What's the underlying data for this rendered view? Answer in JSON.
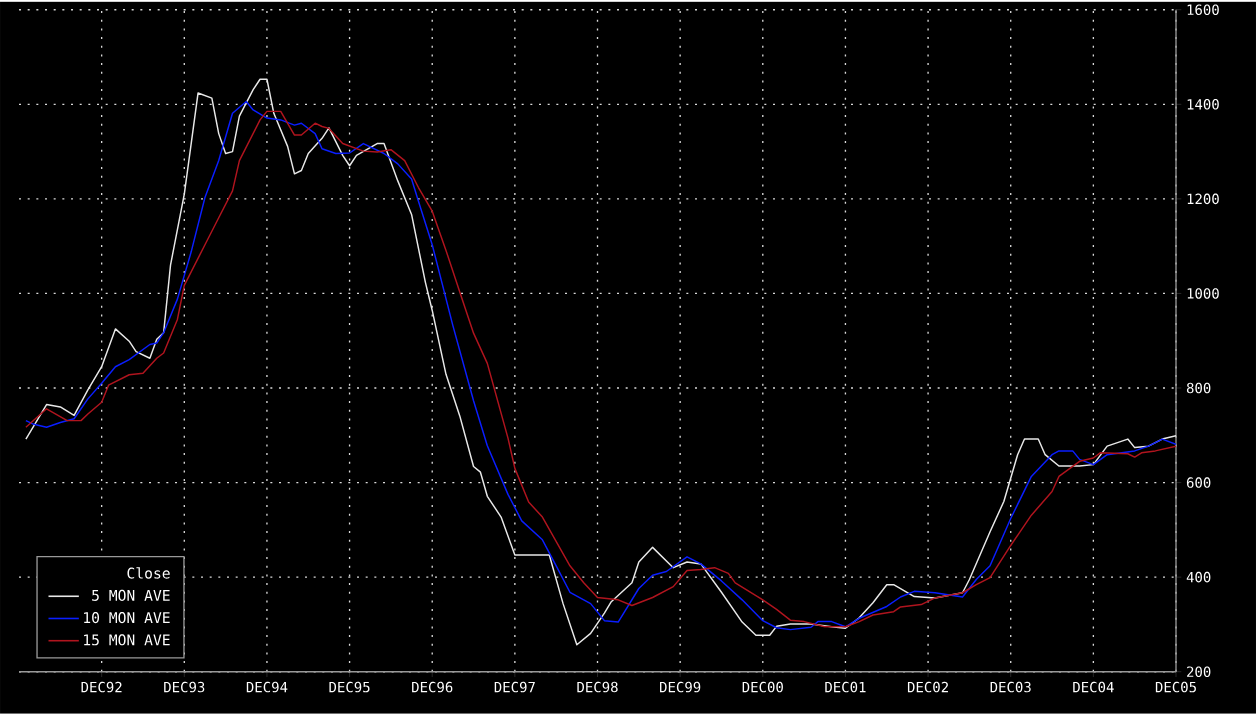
{
  "chart_data": {
    "type": "line",
    "legend_title": "Close",
    "legend": "bottom left",
    "grid": true,
    "line_style": "solid",
    "marker": "none",
    "xlim": [
      "1991-12",
      "2005-12"
    ],
    "ylim": [
      200,
      1600
    ],
    "yticks": [
      200,
      400,
      600,
      800,
      1000,
      1200,
      1400,
      1600
    ],
    "xticks": [
      {
        "value": "1992-12",
        "label": "DEC92"
      },
      {
        "value": "1993-12",
        "label": "DEC93"
      },
      {
        "value": "1994-12",
        "label": "DEC94"
      },
      {
        "value": "1995-12",
        "label": "DEC95"
      },
      {
        "value": "1996-12",
        "label": "DEC96"
      },
      {
        "value": "1997-12",
        "label": "DEC97"
      },
      {
        "value": "1998-12",
        "label": "DEC98"
      },
      {
        "value": "1999-12",
        "label": "DEC99"
      },
      {
        "value": "2000-12",
        "label": "DEC00"
      },
      {
        "value": "2001-12",
        "label": "DEC01"
      },
      {
        "value": "2002-12",
        "label": "DEC02"
      },
      {
        "value": "2003-12",
        "label": "DEC03"
      },
      {
        "value": "2004-12",
        "label": "DEC04"
      },
      {
        "value": "2005-12",
        "label": "DEC05"
      }
    ],
    "series": [
      {
        "name": "5 MON AVE",
        "color": "#e8e8e8",
        "x": [
          "1992-01",
          "1992-04",
          "1992-06",
          "1992-08",
          "1992-10",
          "1992-12",
          "1993-02",
          "1993-04",
          "1993-05",
          "1993-07",
          "1993-08",
          "1993-09",
          "1993-10",
          "1993-12",
          "1994-01",
          "1994-02",
          "1994-04",
          "1994-05",
          "1994-06",
          "1994-07",
          "1994-08",
          "1994-10",
          "1994-11",
          "1994-12",
          "1995-01",
          "1995-03",
          "1995-04",
          "1995-05",
          "1995-06",
          "1995-08",
          "1995-09",
          "1995-11",
          "1995-12",
          "1996-01",
          "1996-04",
          "1996-05",
          "1996-07",
          "1996-09",
          "1996-11",
          "1996-12",
          "1997-02",
          "1997-04",
          "1997-06",
          "1997-07",
          "1997-08",
          "1997-10",
          "1997-12",
          "1998-05",
          "1998-07",
          "1998-09",
          "1998-11",
          "1999-01",
          "1999-02",
          "1999-05",
          "1999-06",
          "1999-08",
          "1999-11",
          "2000-01",
          "2000-03",
          "2000-06",
          "2000-09",
          "2000-11",
          "2001-01",
          "2001-02",
          "2001-04",
          "2001-07",
          "2001-10",
          "2001-12",
          "2002-02",
          "2002-04",
          "2002-06",
          "2002-07",
          "2002-10",
          "2003-01",
          "2003-05",
          "2003-06",
          "2003-09",
          "2003-11",
          "2004-01",
          "2004-02",
          "2004-04",
          "2004-05",
          "2004-07",
          "2004-10",
          "2004-12",
          "2005-02",
          "2005-05",
          "2005-06",
          "2005-08",
          "2005-10",
          "2005-12"
        ],
        "values": [
          692,
          765,
          760,
          742,
          796,
          845,
          925,
          899,
          877,
          863,
          903,
          917,
          1060,
          1210,
          1317,
          1424,
          1413,
          1338,
          1296,
          1300,
          1375,
          1431,
          1453,
          1453,
          1381,
          1311,
          1253,
          1260,
          1296,
          1328,
          1350,
          1292,
          1270,
          1292,
          1317,
          1317,
          1238,
          1167,
          1024,
          964,
          829,
          741,
          634,
          622,
          571,
          527,
          447,
          447,
          344,
          257,
          281,
          324,
          348,
          388,
          432,
          463,
          420,
          432,
          428,
          368,
          305,
          277,
          277,
          296,
          301,
          301,
          295,
          292,
          314,
          346,
          384,
          384,
          359,
          356,
          367,
          395,
          496,
          560,
          659,
          692,
          692,
          659,
          635,
          635,
          638,
          677,
          692,
          674,
          677,
          692,
          699
        ]
      },
      {
        "name": "10 MON AVE",
        "color": "#0a1eff",
        "x": [
          "1992-01",
          "1992-02",
          "1992-04",
          "1992-06",
          "1992-08",
          "1992-10",
          "1992-12",
          "1993-02",
          "1993-04",
          "1993-07",
          "1993-08",
          "1993-09",
          "1993-11",
          "1994-01",
          "1994-03",
          "1994-05",
          "1994-07",
          "1994-09",
          "1994-10",
          "1994-12",
          "1995-02",
          "1995-04",
          "1995-05",
          "1995-07",
          "1995-08",
          "1995-10",
          "1995-12",
          "1996-02",
          "1996-03",
          "1996-05",
          "1996-07",
          "1996-09",
          "1996-10",
          "1996-12",
          "1997-03",
          "1997-06",
          "1997-08",
          "1997-11",
          "1998-01",
          "1998-04",
          "1998-06",
          "1998-08",
          "1998-11",
          "1999-01",
          "1999-03",
          "1999-06",
          "1999-08",
          "1999-10",
          "2000-01",
          "2000-03",
          "2000-06",
          "2000-09",
          "2000-12",
          "2001-02",
          "2001-04",
          "2001-07",
          "2001-08",
          "2001-10",
          "2001-12",
          "2002-02",
          "2002-06",
          "2002-08",
          "2002-10",
          "2003-01",
          "2003-05",
          "2003-07",
          "2003-09",
          "2003-12",
          "2004-03",
          "2004-06",
          "2004-07",
          "2004-09",
          "2004-10",
          "2004-12",
          "2005-02",
          "2005-06",
          "2005-08",
          "2005-10",
          "2005-12"
        ],
        "values": [
          731,
          724,
          717,
          727,
          735,
          777,
          810,
          845,
          860,
          892,
          895,
          917,
          988,
          1088,
          1203,
          1281,
          1381,
          1406,
          1388,
          1371,
          1367,
          1356,
          1360,
          1338,
          1306,
          1296,
          1297,
          1317,
          1310,
          1296,
          1274,
          1242,
          1195,
          1103,
          932,
          773,
          678,
          575,
          519,
          479,
          424,
          368,
          344,
          308,
          305,
          376,
          404,
          412,
          443,
          428,
          392,
          352,
          308,
          293,
          289,
          294,
          306,
          306,
          295,
          313,
          338,
          358,
          370,
          367,
          358,
          395,
          424,
          524,
          613,
          659,
          667,
          667,
          649,
          638,
          659,
          667,
          677,
          692,
          681
        ]
      },
      {
        "name": "15 MON AVE",
        "color": "#b0141e",
        "x": [
          "1992-01",
          "1992-04",
          "1992-07",
          "1992-09",
          "1992-10",
          "1992-12",
          "1993-01",
          "1993-04",
          "1993-06",
          "1993-08",
          "1993-09",
          "1993-11",
          "1993-12",
          "1994-03",
          "1994-05",
          "1994-07",
          "1994-08",
          "1994-11",
          "1994-12",
          "1995-02",
          "1995-04",
          "1995-05",
          "1995-07",
          "1995-08",
          "1995-09",
          "1995-11",
          "1996-02",
          "1996-04",
          "1996-06",
          "1996-08",
          "1996-10",
          "1996-12",
          "1997-02",
          "1997-04",
          "1997-06",
          "1997-08",
          "1997-11",
          "1997-12",
          "1998-02",
          "1998-04",
          "1998-08",
          "1998-10",
          "1998-12",
          "1999-03",
          "1999-05",
          "1999-08",
          "1999-11",
          "2000-01",
          "2000-03",
          "2000-05",
          "2000-07",
          "2000-08",
          "2000-12",
          "2001-02",
          "2001-04",
          "2001-06",
          "2001-09",
          "2001-12",
          "2002-02",
          "2002-04",
          "2002-07",
          "2002-08",
          "2002-11",
          "2003-01",
          "2003-05",
          "2003-07",
          "2003-09",
          "2003-12",
          "2004-03",
          "2004-06",
          "2004-07",
          "2004-10",
          "2004-12",
          "2005-01",
          "2005-05",
          "2005-06",
          "2005-07",
          "2005-09",
          "2005-12"
        ],
        "values": [
          717,
          756,
          731,
          731,
          745,
          770,
          806,
          828,
          831,
          863,
          874,
          945,
          1017,
          1103,
          1160,
          1217,
          1281,
          1367,
          1385,
          1385,
          1335,
          1335,
          1360,
          1353,
          1349,
          1317,
          1301,
          1299,
          1304,
          1281,
          1224,
          1174,
          1091,
          1003,
          916,
          852,
          694,
          630,
          559,
          527,
          424,
          388,
          357,
          352,
          340,
          357,
          380,
          414,
          416,
          420,
          408,
          388,
          352,
          332,
          309,
          306,
          295,
          295,
          306,
          320,
          327,
          337,
          342,
          356,
          367,
          384,
          399,
          467,
          531,
          581,
          613,
          645,
          652,
          663,
          661,
          654,
          663,
          667,
          677
        ]
      }
    ]
  }
}
